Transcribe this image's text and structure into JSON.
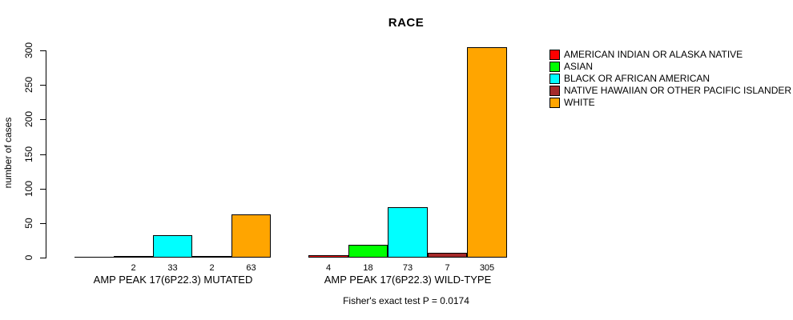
{
  "chart_data": {
    "type": "bar",
    "title": "RACE",
    "xlabel": "",
    "ylabel": "number of cases",
    "ylim": [
      0,
      300
    ],
    "yticks": [
      0,
      50,
      100,
      150,
      200,
      250,
      300
    ],
    "grid": false,
    "legend_position": "right-outside",
    "annotation": "Fisher's exact test P = 0.0174",
    "categories": [
      "AMP PEAK 17(6P22.3) MUTATED",
      "AMP PEAK 17(6P22.3) WILD-TYPE"
    ],
    "series": [
      {
        "name": "AMERICAN INDIAN OR ALASKA NATIVE",
        "color": "#FF0000",
        "values": [
          0,
          4
        ],
        "value_labels": [
          "",
          "4"
        ]
      },
      {
        "name": "ASIAN",
        "color": "#00FF00",
        "values": [
          2,
          18
        ],
        "value_labels": [
          "2",
          "18"
        ]
      },
      {
        "name": "BLACK OR AFRICAN AMERICAN",
        "color": "#00FFFF",
        "values": [
          33,
          73
        ],
        "value_labels": [
          "33",
          "73"
        ]
      },
      {
        "name": "NATIVE HAWAIIAN OR OTHER PACIFIC ISLANDER",
        "color": "#A52A2A",
        "values": [
          2,
          7
        ],
        "value_labels": [
          "2",
          "7"
        ]
      },
      {
        "name": "WHITE",
        "color": "#FFA500",
        "values": [
          63,
          305
        ],
        "value_labels": [
          "63",
          "305"
        ]
      }
    ]
  }
}
